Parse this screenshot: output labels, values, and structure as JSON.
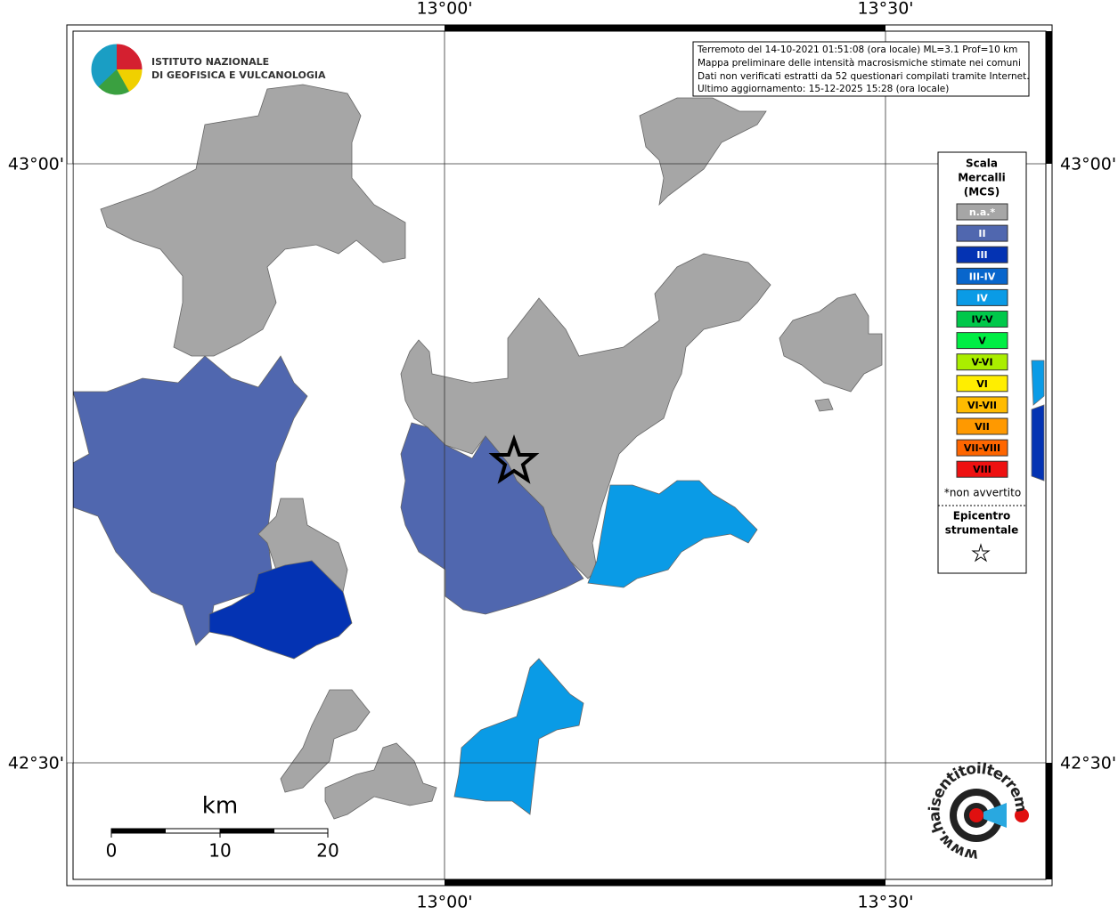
{
  "axes": {
    "top": [
      "13°00'",
      "13°30'"
    ],
    "bottom": [
      "13°00'",
      "13°30'"
    ],
    "left": [
      "43°00'",
      "42°30'"
    ],
    "right": [
      "43°00'",
      "42°30'"
    ]
  },
  "logo": {
    "lines": [
      "ISTITUTO NAZIONALE",
      "DI GEOFISICA E VULCANOLOGIA"
    ]
  },
  "info": {
    "lines": [
      "Terremoto del 14-10-2021 01:51:08 (ora locale) ML=3.1 Prof=10 km",
      "Mappa preliminare delle intensità macrosismiche stimate nei comuni",
      "Dati non verificati estratti da 52 questionari compilati tramite Internet.",
      "Ultimo aggiornamento: 15-12-2025 15:28 (ora locale)"
    ]
  },
  "legend": {
    "title": [
      "Scala",
      "Mercalli",
      "(MCS)"
    ],
    "items": [
      {
        "label": "n.a.*",
        "color": "#a6a6a6"
      },
      {
        "label": "II",
        "color": "#5067af"
      },
      {
        "label": "III",
        "color": "#0433b3"
      },
      {
        "label": "III-IV",
        "color": "#0866cc"
      },
      {
        "label": "IV",
        "color": "#0a9be6"
      },
      {
        "label": "IV-V",
        "color": "#00c84a"
      },
      {
        "label": "V",
        "color": "#00ee44"
      },
      {
        "label": "V-VI",
        "color": "#aaee00"
      },
      {
        "label": "VI",
        "color": "#ffee00"
      },
      {
        "label": "VI-VII",
        "color": "#ffbb00"
      },
      {
        "label": "VII",
        "color": "#ff9900"
      },
      {
        "label": "VII-VIII",
        "color": "#ff6600"
      },
      {
        "label": "VIII",
        "color": "#ee1111"
      }
    ],
    "note": "*non avvertito",
    "epicenter": [
      "Epicentro",
      "strumentale"
    ]
  },
  "scale": {
    "unit": "km",
    "ticks": [
      "0",
      "10",
      "20"
    ]
  },
  "badge": {
    "text": "www.haisentitoilterremoto.it"
  }
}
